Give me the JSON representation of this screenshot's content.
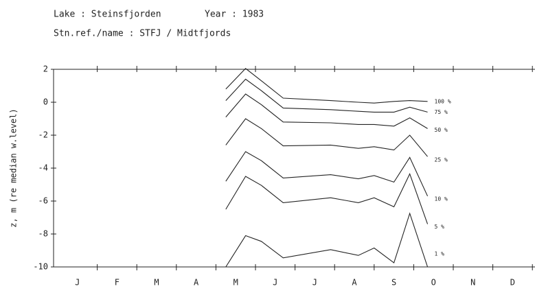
{
  "header": {
    "lake": "Lake : Steinsfjorden",
    "year": "Year : 1983",
    "station": "Stn.ref./name : STFJ / Midtfjords"
  },
  "chart_data": {
    "type": "line",
    "y_label": "z, m (re median w.level)",
    "categories": [
      "J",
      "F",
      "M",
      "A",
      "M",
      "J",
      "J",
      "A",
      "S",
      "O",
      "N",
      "D"
    ],
    "xlim": [
      0,
      12
    ],
    "xticks": [
      1,
      2,
      3,
      4,
      5,
      6,
      7,
      8,
      9,
      10,
      11,
      12
    ],
    "ylim": [
      -10,
      2
    ],
    "yticks": [
      -10,
      -8,
      -6,
      -4,
      -2,
      0,
      2
    ],
    "x": [
      4.25,
      4.75,
      5.15,
      5.7,
      6.9,
      7.6,
      8.0,
      8.5,
      8.9,
      9.35
    ],
    "series": [
      {
        "name": "100 %",
        "color": "#222222",
        "values": [
          0.8,
          2.05,
          1.3,
          0.25,
          0.1,
          0.0,
          -0.05,
          0.05,
          0.1,
          0.05
        ]
      },
      {
        "name": "75 %",
        "color": "#222222",
        "values": [
          0.1,
          1.4,
          0.7,
          -0.35,
          -0.45,
          -0.55,
          -0.6,
          -0.6,
          -0.3,
          -0.6
        ]
      },
      {
        "name": "50 %",
        "color": "#222222",
        "values": [
          -0.9,
          0.5,
          -0.15,
          -1.2,
          -1.25,
          -1.35,
          -1.35,
          -1.45,
          -0.95,
          -1.6
        ]
      },
      {
        "name": "25 %",
        "color": "#222222",
        "values": [
          -2.6,
          -1.0,
          -1.6,
          -2.65,
          -2.6,
          -2.8,
          -2.7,
          -2.9,
          -2.0,
          -3.3
        ]
      },
      {
        "name": "10 %",
        "color": "#222222",
        "values": [
          -4.8,
          -3.0,
          -3.55,
          -4.6,
          -4.4,
          -4.65,
          -4.45,
          -4.85,
          -3.35,
          -5.7
        ]
      },
      {
        "name": "5 %",
        "color": "#222222",
        "values": [
          -6.5,
          -4.5,
          -5.05,
          -6.1,
          -5.8,
          -6.1,
          -5.8,
          -6.35,
          -4.35,
          -7.4
        ]
      },
      {
        "name": "1 %",
        "color": "#222222",
        "values": [
          -10,
          -8.1,
          -8.45,
          -9.45,
          -8.95,
          -9.3,
          -8.85,
          -9.75,
          -6.75,
          -10
        ]
      }
    ]
  }
}
